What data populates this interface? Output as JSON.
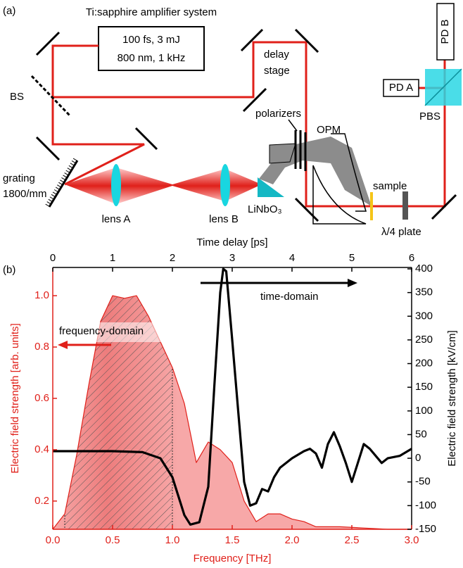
{
  "diagram": {
    "panel_label": "(a)",
    "title": "Ti:sapphire amplifier system",
    "laser_specs": [
      "100 fs, 3 mJ",
      "800 nm, 1 kHz"
    ],
    "labels": [
      "delay",
      "stage",
      "BS",
      "grating",
      "1800/mm",
      "lens A",
      "lens B",
      "LiNbO₃",
      "polarizers",
      "OPM",
      "sample",
      "λ/4 plate",
      "PD A",
      "PD B",
      "PBS"
    ]
  },
  "chart_data": {
    "type": "line",
    "panel_label": "(b)",
    "xlabel": "Frequency [THz]",
    "x2label": "Time delay [ps]",
    "ylabel": "Electric field strength [arb. units]",
    "y2label": "Electric field strength [kV/cm]",
    "xlim": [
      0,
      3
    ],
    "x2lim": [
      0,
      6
    ],
    "ylim": [
      0.09,
      1.11
    ],
    "y2lim": [
      -150,
      403
    ],
    "xticks": [
      {
        "value": 0,
        "label": "0.0"
      },
      {
        "value": 0.5,
        "label": "0.5"
      },
      {
        "value": 1,
        "label": "1.0"
      },
      {
        "value": 1.5,
        "label": "1.5"
      },
      {
        "value": 2,
        "label": "2.0"
      },
      {
        "value": 2.5,
        "label": "2.5"
      },
      {
        "value": 3,
        "label": "3.0"
      }
    ],
    "x2ticks": [
      0,
      1,
      2,
      3,
      4,
      5,
      6
    ],
    "yticks": [
      0.2,
      0.4,
      0.6,
      0.8,
      {
        "value": 1,
        "label": "1.0"
      }
    ],
    "y2ticks": [
      -150,
      -100,
      -50,
      0,
      50,
      100,
      150,
      200,
      250,
      300,
      350,
      400
    ],
    "annotations": [
      "frequency-domain",
      "time-domain"
    ],
    "series": [
      {
        "name": "frequency-domain",
        "color": "#e0201a",
        "fill": "#f7a8a8",
        "axis": "y",
        "xaxis": "x",
        "x": [
          0,
          0.1,
          0.2,
          0.3,
          0.4,
          0.5,
          0.6,
          0.7,
          0.8,
          0.9,
          1.0,
          1.1,
          1.2,
          1.3,
          1.4,
          1.5,
          1.6,
          1.7,
          1.8,
          1.9,
          2.0,
          2.1,
          2.2,
          2.4,
          2.6,
          2.8,
          3.0
        ],
        "values": [
          0.09,
          0.15,
          0.38,
          0.65,
          0.9,
          1.0,
          0.99,
          1.0,
          0.92,
          0.82,
          0.72,
          0.58,
          0.35,
          0.43,
          0.4,
          0.35,
          0.2,
          0.12,
          0.15,
          0.15,
          0.13,
          0.12,
          0.1,
          0.1,
          0.095,
          0.09,
          0.09
        ]
      },
      {
        "name": "time-domain",
        "color": "#000000",
        "axis": "y2",
        "xaxis": "x2",
        "x": [
          0,
          1,
          1.5,
          1.8,
          2.0,
          2.2,
          2.3,
          2.45,
          2.6,
          2.7,
          2.8,
          2.85,
          2.9,
          3.0,
          3.2,
          3.3,
          3.4,
          3.5,
          3.6,
          3.7,
          3.8,
          4.0,
          4.2,
          4.3,
          4.4,
          4.5,
          4.6,
          4.7,
          4.8,
          4.9,
          5.0,
          5.1,
          5.2,
          5.3,
          5.5,
          5.6,
          5.8,
          6.0
        ],
        "values": [
          15,
          15,
          13,
          0,
          -40,
          -120,
          -140,
          -135,
          -60,
          150,
          350,
          400,
          395,
          250,
          -50,
          -100,
          -95,
          -65,
          -70,
          -40,
          -20,
          0,
          15,
          20,
          10,
          -20,
          30,
          55,
          25,
          -10,
          -50,
          -10,
          30,
          20,
          -10,
          0,
          5,
          20
        ]
      }
    ]
  }
}
